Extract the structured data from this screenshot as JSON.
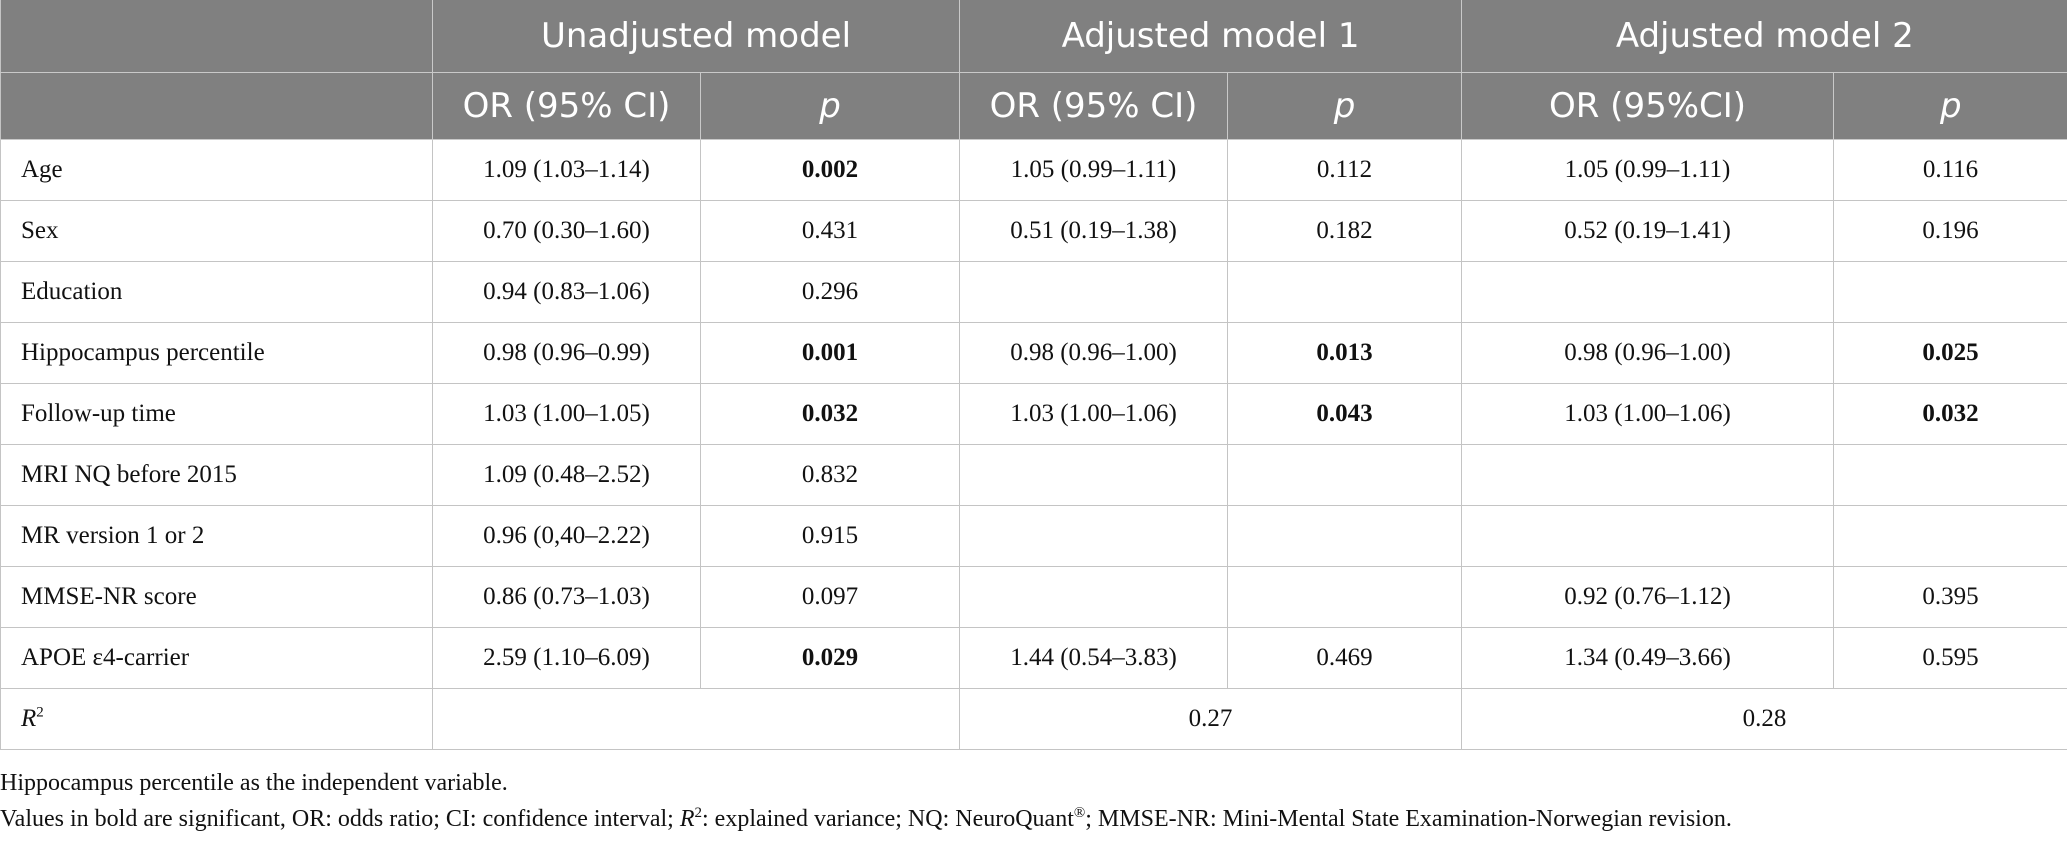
{
  "table": {
    "group_headers": [
      "",
      "Unadjusted model",
      "Adjusted model 1",
      "Adjusted model 2"
    ],
    "sub_headers": [
      "",
      "OR (95% CI)",
      "p",
      "OR (95% CI)",
      "p",
      "OR (95%CI)",
      "p"
    ],
    "rows": [
      {
        "label": "Age",
        "u_or": "1.09 (1.03–1.14)",
        "u_p": "0.002",
        "u_sig": true,
        "a1_or": "1.05 (0.99–1.11)",
        "a1_p": "0.112",
        "a1_sig": false,
        "a2_or": "1.05 (0.99–1.11)",
        "a2_p": "0.116",
        "a2_sig": false
      },
      {
        "label": "Sex",
        "u_or": "0.70 (0.30–1.60)",
        "u_p": "0.431",
        "u_sig": false,
        "a1_or": "0.51 (0.19–1.38)",
        "a1_p": "0.182",
        "a1_sig": false,
        "a2_or": "0.52 (0.19–1.41)",
        "a2_p": "0.196",
        "a2_sig": false
      },
      {
        "label": "Education",
        "u_or": "0.94 (0.83–1.06)",
        "u_p": "0.296",
        "u_sig": false,
        "a1_or": "",
        "a1_p": "",
        "a1_sig": false,
        "a2_or": "",
        "a2_p": "",
        "a2_sig": false
      },
      {
        "label": "Hippocampus percentile",
        "u_or": "0.98 (0.96–0.99)",
        "u_p": "0.001",
        "u_sig": true,
        "a1_or": "0.98 (0.96–1.00)",
        "a1_p": "0.013",
        "a1_sig": true,
        "a2_or": "0.98 (0.96–1.00)",
        "a2_p": "0.025",
        "a2_sig": true
      },
      {
        "label": "Follow-up time",
        "u_or": "1.03 (1.00–1.05)",
        "u_p": "0.032",
        "u_sig": true,
        "a1_or": "1.03 (1.00–1.06)",
        "a1_p": "0.043",
        "a1_sig": true,
        "a2_or": "1.03 (1.00–1.06)",
        "a2_p": "0.032",
        "a2_sig": true
      },
      {
        "label": "MRI NQ before 2015",
        "u_or": "1.09 (0.48–2.52)",
        "u_p": "0.832",
        "u_sig": false,
        "a1_or": "",
        "a1_p": "",
        "a1_sig": false,
        "a2_or": "",
        "a2_p": "",
        "a2_sig": false
      },
      {
        "label": "MR version 1 or 2",
        "u_or": "0.96 (0,40–2.22)",
        "u_p": "0.915",
        "u_sig": false,
        "a1_or": "",
        "a1_p": "",
        "a1_sig": false,
        "a2_or": "",
        "a2_p": "",
        "a2_sig": false
      },
      {
        "label": "MMSE-NR score",
        "u_or": "0.86 (0.73–1.03)",
        "u_p": "0.097",
        "u_sig": false,
        "a1_or": "",
        "a1_p": "",
        "a1_sig": false,
        "a2_or": "0.92 (0.76–1.12)",
        "a2_p": "0.395",
        "a2_sig": false
      },
      {
        "label": "APOE ε4-carrier",
        "u_or": "2.59 (1.10–6.09)",
        "u_p": "0.029",
        "u_sig": true,
        "a1_or": "1.44 (0.54–3.83)",
        "a1_p": "0.469",
        "a1_sig": false,
        "a2_or": "1.34 (0.49–3.66)",
        "a2_p": "0.595",
        "a2_sig": false
      }
    ],
    "r2_row": {
      "label": "R",
      "label_sup": "2",
      "unadjusted": "",
      "adjusted1": "0.27",
      "adjusted2": "0.28"
    }
  },
  "notes": {
    "line1": "Hippocampus percentile as the independent variable.",
    "line2_a": "Values in bold are significant, OR: odds ratio; CI: confidence interval; ",
    "line2_r": "R",
    "line2_sup": "2",
    "line2_b": ": explained variance; NQ: NeuroQuant",
    "line2_reg": "®",
    "line2_c": "; MMSE-NR: Mini-Mental State Examination-Norwegian revision."
  }
}
